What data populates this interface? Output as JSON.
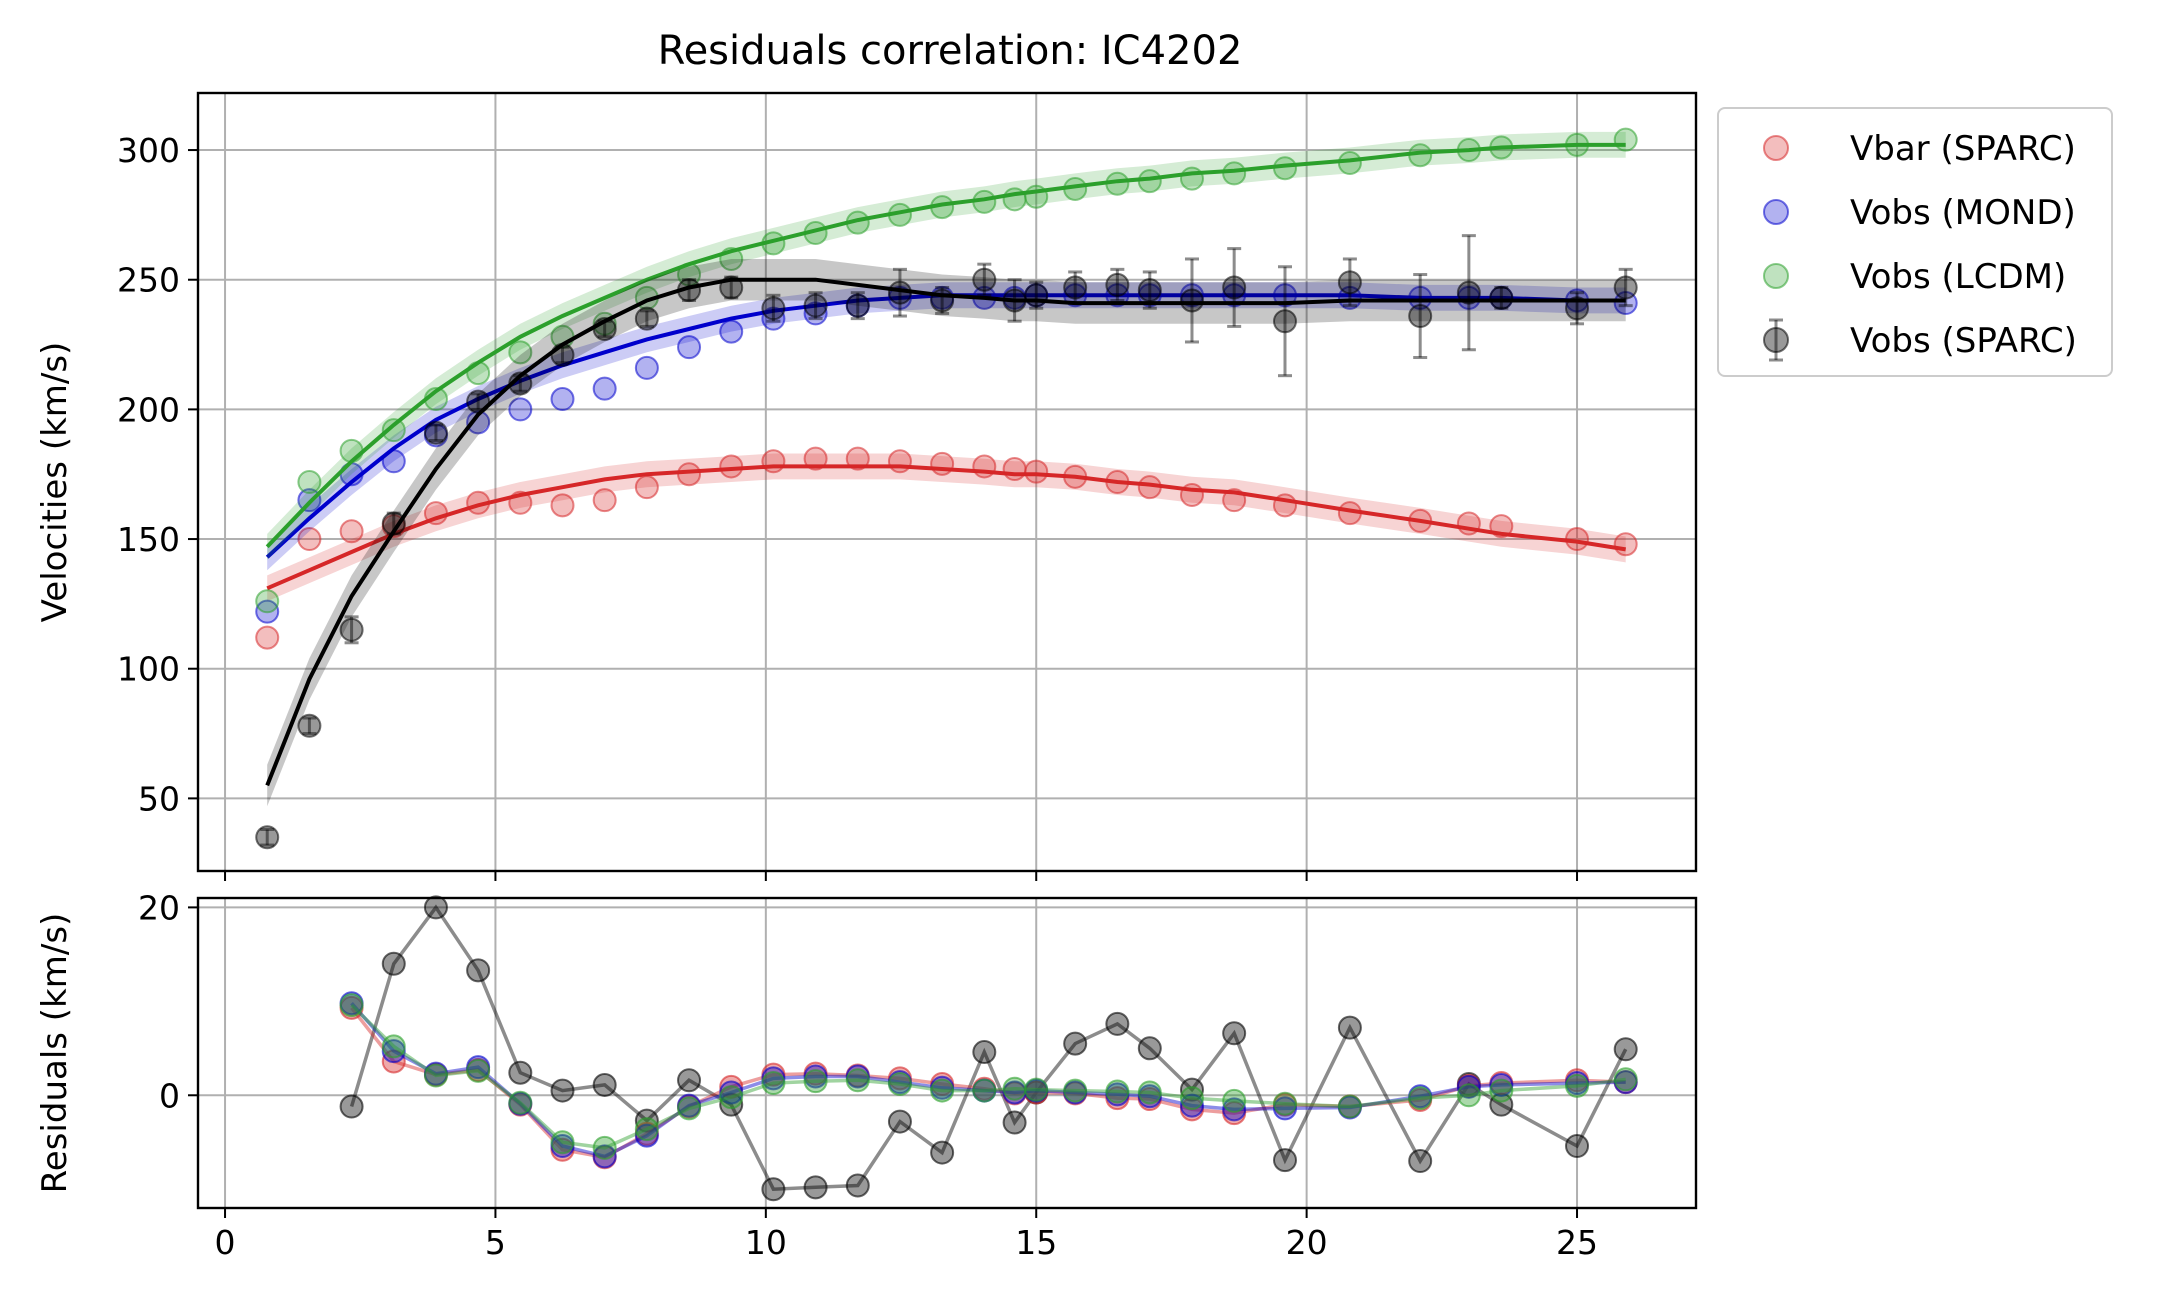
{
  "chart_data": [
    {
      "type": "scatter",
      "title": "Residuals correlation: IC4202",
      "xlabel": "",
      "ylabel": "Velocities (km/s)",
      "xlim": [
        -0.5,
        27.2
      ],
      "ylim": [
        22,
        322
      ],
      "xticks": [
        0,
        5,
        10,
        15,
        20,
        25
      ],
      "yticks": [
        50,
        100,
        150,
        200,
        250,
        300
      ],
      "grid": true,
      "legend": {
        "placement": "outside-top-right",
        "entries": [
          "Vbar (SPARC)",
          "Vobs (MOND)",
          "Vobs (LCDM)",
          "Vobs (SPARC)"
        ]
      },
      "colors": {
        "vbar": "#d62728",
        "mond": "#0000cc",
        "lcdm": "#2ca02c",
        "sparc": "#000000"
      },
      "x": [
        0.78,
        1.56,
        2.34,
        3.12,
        3.9,
        4.68,
        5.46,
        6.24,
        7.02,
        7.8,
        8.58,
        9.36,
        10.14,
        10.92,
        11.7,
        12.48,
        13.26,
        14.04,
        14.6,
        15.0,
        15.72,
        16.5,
        17.1,
        17.88,
        18.66,
        19.6,
        20.8,
        22.1,
        23.0,
        23.6,
        25.0,
        25.9
      ],
      "series": [
        {
          "name": "Vbar (SPARC)",
          "key": "vbar",
          "points": [
            112,
            150,
            153,
            155,
            160,
            164,
            164,
            163,
            165,
            170,
            175,
            178,
            180,
            181,
            181,
            180,
            179,
            178,
            177,
            176,
            174,
            172,
            170,
            167,
            165,
            163,
            160,
            157,
            156,
            155,
            150,
            148
          ],
          "fit": [
            131,
            138,
            145,
            152,
            158,
            163,
            167,
            170,
            173,
            175,
            176,
            177,
            178,
            178,
            178,
            178,
            177,
            176,
            175,
            175,
            174,
            172,
            171,
            169,
            168,
            165,
            161,
            157,
            154,
            152,
            149,
            146
          ]
        },
        {
          "name": "Vobs (MOND)",
          "key": "mond",
          "points": [
            122,
            165,
            175,
            180,
            190,
            195,
            200,
            204,
            208,
            216,
            224,
            230,
            235,
            237,
            240,
            243,
            243,
            243,
            243,
            244,
            244,
            244,
            244,
            244,
            244,
            244,
            243,
            243,
            243,
            243,
            242,
            241
          ],
          "fit": [
            143,
            158,
            172,
            185,
            196,
            204,
            211,
            217,
            222,
            227,
            231,
            235,
            238,
            240,
            242,
            243,
            244,
            244,
            244,
            244,
            244,
            244,
            244,
            244,
            244,
            244,
            244,
            243,
            243,
            243,
            242,
            242
          ]
        },
        {
          "name": "Vobs (LCDM)",
          "key": "lcdm",
          "points": [
            126,
            172,
            184,
            192,
            204,
            214,
            222,
            228,
            233,
            243,
            252,
            258,
            264,
            268,
            272,
            275,
            278,
            280,
            281,
            282,
            285,
            287,
            288,
            289,
            291,
            293,
            295,
            298,
            300,
            301,
            302,
            304
          ],
          "fit": [
            147,
            164,
            180,
            194,
            207,
            218,
            228,
            236,
            243,
            250,
            256,
            261,
            265,
            269,
            273,
            276,
            279,
            281,
            283,
            284,
            286,
            288,
            289,
            291,
            292,
            294,
            296,
            299,
            300,
            301,
            302,
            302
          ]
        },
        {
          "name": "Vobs (SPARC)",
          "key": "sparc",
          "points": [
            35,
            78,
            115,
            156,
            191,
            203,
            210,
            221,
            231,
            235,
            246,
            247,
            239,
            240,
            240,
            245,
            242,
            250,
            242,
            244,
            247,
            248,
            246,
            242,
            247,
            234,
            249,
            236,
            245,
            243,
            239,
            247
          ],
          "errors": [
            3,
            3,
            5,
            4,
            3,
            3,
            3,
            3,
            3,
            3,
            4,
            4,
            5,
            5,
            5,
            9,
            5,
            6,
            8,
            5,
            6,
            6,
            7,
            16,
            15,
            21,
            9,
            16,
            22,
            4,
            6,
            7
          ],
          "fit": [
            55,
            96,
            128,
            153,
            177,
            198,
            213,
            225,
            234,
            242,
            247,
            250,
            250,
            250,
            248,
            246,
            244,
            243,
            242,
            242,
            241,
            241,
            241,
            241,
            241,
            241,
            242,
            242,
            242,
            242,
            242,
            242
          ]
        }
      ]
    },
    {
      "type": "line",
      "title": "",
      "xlabel": "",
      "ylabel": "Residuals (km/s)",
      "xlim": [
        -0.5,
        27.2
      ],
      "ylim": [
        -12,
        21
      ],
      "xticks": [
        0,
        5,
        10,
        15,
        20,
        25
      ],
      "yticks": [
        0,
        20
      ],
      "grid": true,
      "x": [
        2.34,
        3.12,
        3.9,
        4.68,
        5.46,
        6.24,
        7.02,
        7.8,
        8.58,
        9.36,
        10.14,
        10.92,
        11.7,
        12.48,
        13.26,
        14.04,
        14.6,
        15.0,
        15.72,
        16.5,
        17.1,
        17.88,
        18.66,
        19.6,
        20.8,
        22.1,
        23.0,
        23.6,
        25.0,
        25.9
      ],
      "series": [
        {
          "name": "Vbar (SPARC)",
          "key": "vbar",
          "values": [
            9.3,
            3.6,
            2.2,
            2.7,
            -1.0,
            -5.8,
            -6.6,
            -4.1,
            -1.2,
            0.9,
            2.2,
            2.3,
            2.1,
            1.8,
            1.2,
            0.7,
            0.2,
            0.3,
            0.2,
            -0.3,
            -0.4,
            -1.5,
            -1.9,
            -1.0,
            -1.2,
            -0.5,
            1.0,
            1.3,
            1.6,
            1.4
          ]
        },
        {
          "name": "Vobs (MOND)",
          "key": "mond",
          "values": [
            9.8,
            4.7,
            2.3,
            3.0,
            -0.9,
            -5.4,
            -6.5,
            -4.3,
            -1.1,
            0.3,
            1.8,
            2.0,
            2.0,
            1.4,
            0.8,
            0.5,
            0.3,
            0.5,
            0.3,
            0.1,
            -0.1,
            -1.1,
            -1.5,
            -1.4,
            -1.3,
            -0.1,
            0.9,
            1.1,
            1.3,
            1.4
          ]
        },
        {
          "name": "Vobs (LCDM)",
          "key": "lcdm",
          "values": [
            9.6,
            5.2,
            2.1,
            2.6,
            -0.8,
            -5.0,
            -5.6,
            -3.6,
            -1.4,
            -0.2,
            1.3,
            1.5,
            1.6,
            1.2,
            0.5,
            0.5,
            0.7,
            0.6,
            0.5,
            0.4,
            0.3,
            -0.3,
            -0.6,
            -0.9,
            -1.2,
            -0.3,
            0.0,
            0.5,
            1.0,
            1.7
          ]
        },
        {
          "name": "Vobs (SPARC)",
          "key": "sparc",
          "values": [
            -1.2,
            14.0,
            20.0,
            13.3,
            2.4,
            0.5,
            1.1,
            -2.7,
            1.6,
            -1.0,
            -10.0,
            -9.8,
            -9.6,
            -2.8,
            -6.1,
            4.6,
            -2.9,
            0.3,
            5.5,
            7.6,
            5.0,
            0.6,
            6.6,
            -6.9,
            7.2,
            -7.0,
            1.2,
            -1.0,
            -5.4,
            4.9
          ]
        }
      ]
    }
  ]
}
